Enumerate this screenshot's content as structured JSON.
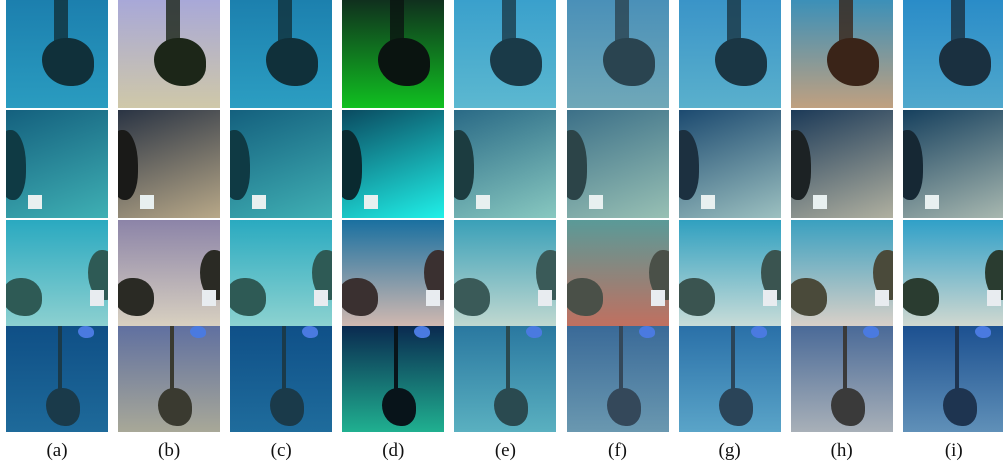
{
  "figure": {
    "labels": [
      "(a)",
      "(b)",
      "(c)",
      "(d)",
      "(e)",
      "(f)",
      "(g)",
      "(h)",
      "(i)"
    ]
  }
}
